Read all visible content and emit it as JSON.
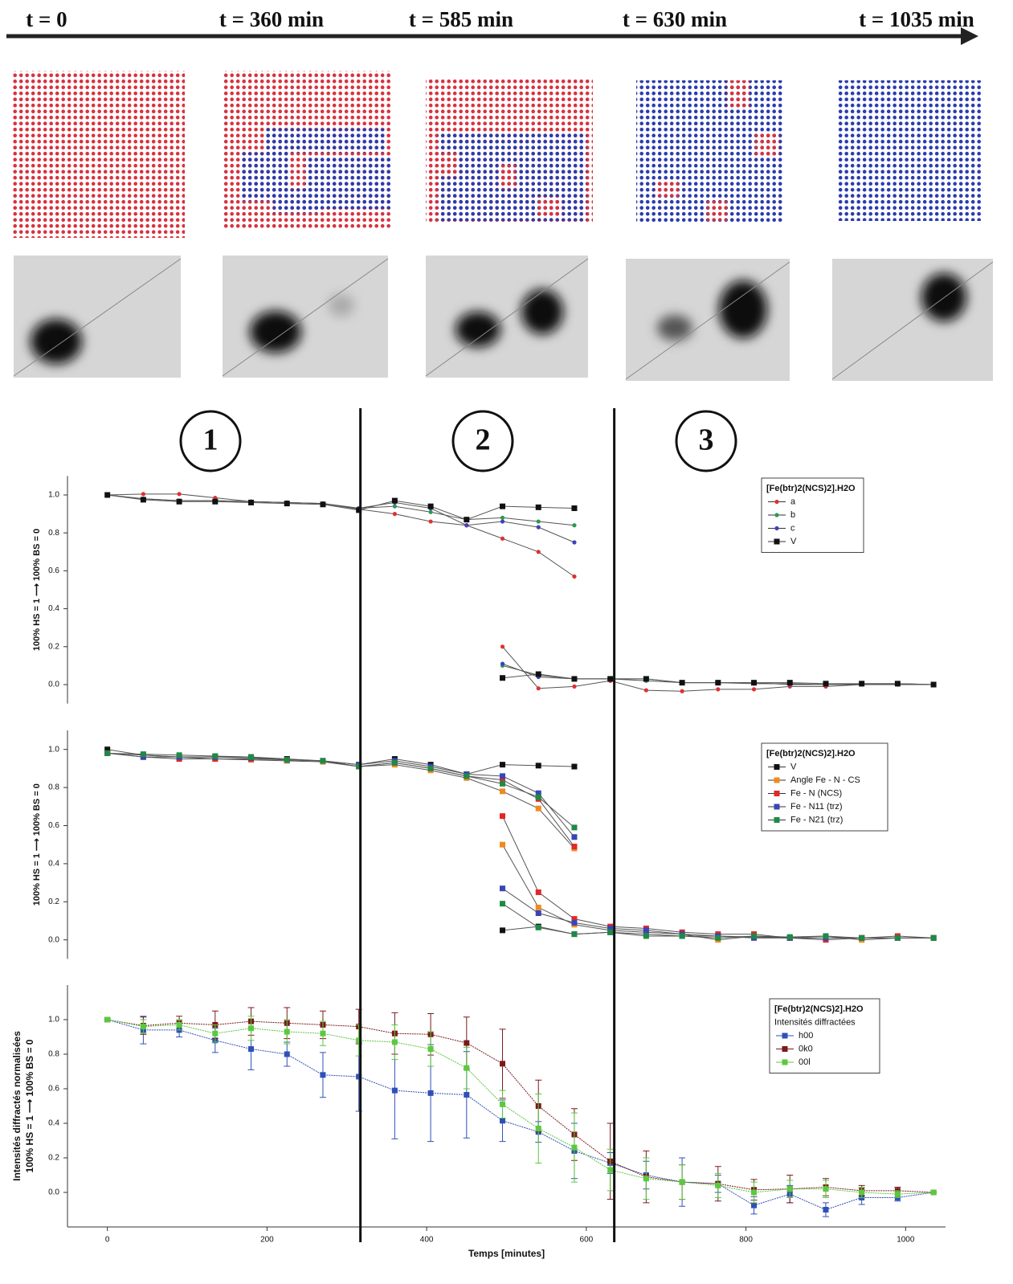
{
  "timeline": {
    "labels": [
      "t = 0",
      "t = 360 min",
      "t = 585 min",
      "t = 630 min",
      "t = 1035 min"
    ]
  },
  "phases": {
    "labels": [
      "1",
      "2",
      "3"
    ],
    "boundaries": [
      317,
      635
    ]
  },
  "chart_data": [
    {
      "type": "line",
      "xlim": [
        -50,
        1050
      ],
      "ylim": [
        -0.1,
        1.1
      ],
      "yticks": [
        {
          "value": 0,
          "label": "0.0"
        },
        0.2,
        0.4,
        0.6,
        0.8,
        {
          "value": 1,
          "label": "1.0"
        }
      ],
      "ylabel": "100% HS = 1 ⟶ 100% BS = 0",
      "legend": "upper right",
      "legend_title": "[Fe(btr)2(NCS)2].H2O",
      "x": [
        0,
        45,
        90,
        135,
        180,
        225,
        270,
        315,
        360,
        405,
        450,
        495,
        540,
        585,
        630,
        675,
        720,
        765,
        810,
        855,
        900,
        945,
        990,
        1035
      ],
      "series": [
        {
          "name": "a",
          "color": "#e03030",
          "marker": "circle",
          "values": [
            1.0,
            1.005,
            1.005,
            0.985,
            0.965,
            0.96,
            0.955,
            0.925,
            0.9,
            0.86,
            0.84,
            0.77,
            0.7,
            0.57,
            null,
            null,
            null,
            null,
            null,
            null,
            null,
            null,
            null,
            null
          ],
          "values_low": [
            null,
            null,
            null,
            null,
            null,
            null,
            null,
            null,
            null,
            null,
            null,
            0.2,
            -0.02,
            -0.01,
            0.02,
            -0.03,
            -0.035,
            -0.025,
            -0.025,
            -0.01,
            -0.01,
            0.0,
            0.0,
            0.0
          ]
        },
        {
          "name": "b",
          "color": "#2a9a50",
          "marker": "circle",
          "values": [
            1.0,
            0.98,
            0.97,
            0.97,
            0.965,
            0.96,
            0.955,
            0.93,
            0.94,
            0.91,
            0.87,
            0.88,
            0.86,
            0.84,
            null,
            null,
            null,
            null,
            null,
            null,
            null,
            null,
            null,
            null
          ],
          "values_low": [
            null,
            null,
            null,
            null,
            null,
            null,
            null,
            null,
            null,
            null,
            null,
            0.1,
            0.05,
            0.03,
            0.03,
            0.02,
            0.01,
            0.01,
            0.005,
            0.005,
            0.0,
            0.0,
            0.005,
            0.0
          ]
        },
        {
          "name": "c",
          "color": "#4040c0",
          "marker": "circle",
          "values": [
            1.0,
            0.98,
            0.97,
            0.97,
            0.965,
            0.96,
            0.955,
            0.93,
            0.96,
            0.93,
            0.84,
            0.86,
            0.83,
            0.75,
            null,
            null,
            null,
            null,
            null,
            null,
            null,
            null,
            null,
            null
          ],
          "values_low": [
            null,
            null,
            null,
            null,
            null,
            null,
            null,
            null,
            null,
            null,
            null,
            0.11,
            0.04,
            0.03,
            0.03,
            0.03,
            0.01,
            0.01,
            0.01,
            0.0,
            0.0,
            0.005,
            0.005,
            0.0
          ]
        },
        {
          "name": "V",
          "color": "#111111",
          "marker": "square",
          "values": [
            1.0,
            0.975,
            0.965,
            0.965,
            0.96,
            0.955,
            0.95,
            0.92,
            0.97,
            0.94,
            0.87,
            0.94,
            0.935,
            0.93,
            null,
            null,
            null,
            null,
            null,
            null,
            null,
            null,
            null,
            null
          ],
          "values_low": [
            null,
            null,
            null,
            null,
            null,
            null,
            null,
            null,
            null,
            null,
            null,
            0.035,
            0.055,
            0.03,
            0.03,
            0.03,
            0.01,
            0.01,
            0.01,
            0.01,
            0.005,
            0.005,
            0.005,
            0.0
          ]
        }
      ]
    },
    {
      "type": "line",
      "xlim": [
        -50,
        1050
      ],
      "ylim": [
        -0.1,
        1.1
      ],
      "yticks": [
        {
          "value": 0,
          "label": "0.0"
        },
        0.2,
        0.4,
        0.6,
        0.8,
        {
          "value": 1,
          "label": "1.0"
        }
      ],
      "ylabel": "100% HS = 1 ⟶ 100% BS = 0",
      "legend": "upper right",
      "legend_title": "[Fe(btr)2(NCS)2].H2O",
      "x": [
        0,
        45,
        90,
        135,
        180,
        225,
        270,
        315,
        360,
        405,
        450,
        495,
        540,
        585,
        630,
        675,
        720,
        765,
        810,
        855,
        900,
        945,
        990,
        1035
      ],
      "series": [
        {
          "name": "V",
          "color": "#111111",
          "marker": "square",
          "values": [
            1.0,
            0.97,
            0.96,
            0.96,
            0.96,
            0.95,
            0.94,
            0.92,
            0.95,
            0.92,
            0.87,
            0.92,
            0.915,
            0.91,
            null,
            null,
            null,
            null,
            null,
            null,
            null,
            null,
            null,
            null
          ],
          "values_low": [
            null,
            null,
            null,
            null,
            null,
            null,
            null,
            null,
            null,
            null,
            null,
            0.05,
            0.07,
            0.03,
            0.04,
            0.03,
            0.02,
            0.02,
            0.015,
            0.01,
            0.01,
            0.01,
            0.01,
            0.01
          ]
        },
        {
          "name": "Angle Fe - N - CS",
          "color": "#f08a20",
          "marker": "square",
          "values": [
            0.98,
            0.97,
            0.96,
            0.95,
            0.945,
            0.94,
            0.935,
            0.91,
            0.92,
            0.89,
            0.85,
            0.78,
            0.69,
            0.48,
            null,
            null,
            null,
            null,
            null,
            null,
            null,
            null,
            null,
            null
          ],
          "values_low": [
            null,
            null,
            null,
            null,
            null,
            null,
            null,
            null,
            null,
            null,
            null,
            0.5,
            0.17,
            0.08,
            0.05,
            0.04,
            0.03,
            0.0,
            0.02,
            0.01,
            0.02,
            0.0,
            0.01,
            0.01
          ]
        },
        {
          "name": "Fe - N (NCS)",
          "color": "#e02828",
          "marker": "square",
          "values": [
            0.98,
            0.96,
            0.95,
            0.95,
            0.95,
            0.945,
            0.94,
            0.91,
            0.93,
            0.9,
            0.86,
            0.84,
            0.74,
            0.49,
            null,
            null,
            null,
            null,
            null,
            null,
            null,
            null,
            null,
            null
          ],
          "values_low": [
            null,
            null,
            null,
            null,
            null,
            null,
            null,
            null,
            null,
            null,
            null,
            0.65,
            0.25,
            0.11,
            0.07,
            0.06,
            0.04,
            0.03,
            0.03,
            0.01,
            0.0,
            0.01,
            0.02,
            0.01
          ]
        },
        {
          "name": "Fe - N11 (trz)",
          "color": "#3a44b8",
          "marker": "square",
          "values": [
            0.98,
            0.96,
            0.96,
            0.96,
            0.955,
            0.945,
            0.94,
            0.92,
            0.94,
            0.91,
            0.87,
            0.86,
            0.77,
            0.54,
            null,
            null,
            null,
            null,
            null,
            null,
            null,
            null,
            null,
            null
          ],
          "values_low": [
            null,
            null,
            null,
            null,
            null,
            null,
            null,
            null,
            null,
            null,
            null,
            0.27,
            0.14,
            0.09,
            0.06,
            0.05,
            0.03,
            0.02,
            0.01,
            0.01,
            0.01,
            0.01,
            0.01,
            0.01
          ]
        },
        {
          "name": "Fe - N21 (trz)",
          "color": "#1e8a45",
          "marker": "square",
          "values": [
            0.98,
            0.975,
            0.97,
            0.965,
            0.96,
            0.945,
            0.94,
            0.91,
            0.93,
            0.9,
            0.86,
            0.82,
            0.75,
            0.59,
            null,
            null,
            null,
            null,
            null,
            null,
            null,
            null,
            null,
            null
          ],
          "values_low": [
            null,
            null,
            null,
            null,
            null,
            null,
            null,
            null,
            null,
            null,
            null,
            0.19,
            0.065,
            0.03,
            0.04,
            0.02,
            0.02,
            0.01,
            0.02,
            0.015,
            0.02,
            0.01,
            0.01,
            0.01
          ]
        }
      ]
    },
    {
      "type": "line",
      "xlim": [
        -50,
        1050
      ],
      "ylim": [
        -0.2,
        1.2
      ],
      "xticks": [
        0,
        200,
        400,
        600,
        800,
        1000
      ],
      "yticks": [
        {
          "value": 0,
          "label": "0.0"
        },
        0.2,
        0.4,
        0.6,
        0.8,
        {
          "value": 1,
          "label": "1.0"
        }
      ],
      "xlabel": "Temps [minutes]",
      "ylabel": [
        "Intensités diffractés normalisées",
        "100% HS = 1 ⟶ 100% BS = 0"
      ],
      "legend": "upper right",
      "legend_title": "[Fe(btr)2(NCS)2].H2O",
      "legend_subtitle": "Intensités diffractées",
      "x": [
        0,
        45,
        90,
        135,
        180,
        225,
        270,
        315,
        360,
        405,
        450,
        495,
        540,
        585,
        630,
        675,
        720,
        765,
        810,
        855,
        900,
        945,
        990,
        1035
      ],
      "series": [
        {
          "name": "h00",
          "color": "#3050b8",
          "marker": "square",
          "values": [
            1.0,
            0.94,
            0.94,
            0.88,
            0.83,
            0.8,
            0.68,
            0.67,
            0.59,
            0.575,
            0.565,
            0.415,
            0.35,
            0.24,
            0.17,
            0.1,
            0.06,
            0.05,
            -0.075,
            -0.01,
            -0.1,
            -0.03,
            -0.03,
            0.0
          ],
          "errors": [
            0,
            0.08,
            0.04,
            0.07,
            0.12,
            0.07,
            0.13,
            0.2,
            0.28,
            0.28,
            0.25,
            0.12,
            0.06,
            0.16,
            0.06,
            0.08,
            0.14,
            0.05,
            0.05,
            0.05,
            0.04,
            0.04,
            0.02,
            0
          ]
        },
        {
          "name": "0k0",
          "color": "#7a1a1a",
          "marker": "square",
          "values": [
            1.0,
            0.965,
            0.98,
            0.97,
            0.99,
            0.98,
            0.97,
            0.96,
            0.92,
            0.915,
            0.865,
            0.745,
            0.5,
            0.335,
            0.18,
            0.09,
            0.06,
            0.05,
            0.015,
            0.02,
            0.03,
            0.01,
            0.01,
            0.0
          ],
          "errors": [
            0,
            0.05,
            0.04,
            0.08,
            0.08,
            0.09,
            0.08,
            0.1,
            0.12,
            0.12,
            0.15,
            0.2,
            0.15,
            0.15,
            0.22,
            0.15,
            0.1,
            0.1,
            0.06,
            0.08,
            0.05,
            0.03,
            0.02,
            0
          ]
        },
        {
          "name": "00l",
          "color": "#5cc840",
          "marker": "square",
          "values": [
            1.0,
            0.96,
            0.97,
            0.92,
            0.95,
            0.93,
            0.92,
            0.88,
            0.87,
            0.83,
            0.72,
            0.51,
            0.37,
            0.26,
            0.13,
            0.08,
            0.06,
            0.04,
            0.0,
            0.02,
            0.02,
            0.0,
            -0.01,
            0.0
          ],
          "errors": [
            0,
            0.04,
            0.03,
            0.05,
            0.07,
            0.07,
            0.07,
            0.09,
            0.1,
            0.1,
            0.12,
            0.08,
            0.2,
            0.2,
            0.12,
            0.12,
            0.1,
            0.07,
            0.06,
            0.05,
            0.05,
            0.03,
            0.02,
            0
          ]
        }
      ]
    }
  ]
}
